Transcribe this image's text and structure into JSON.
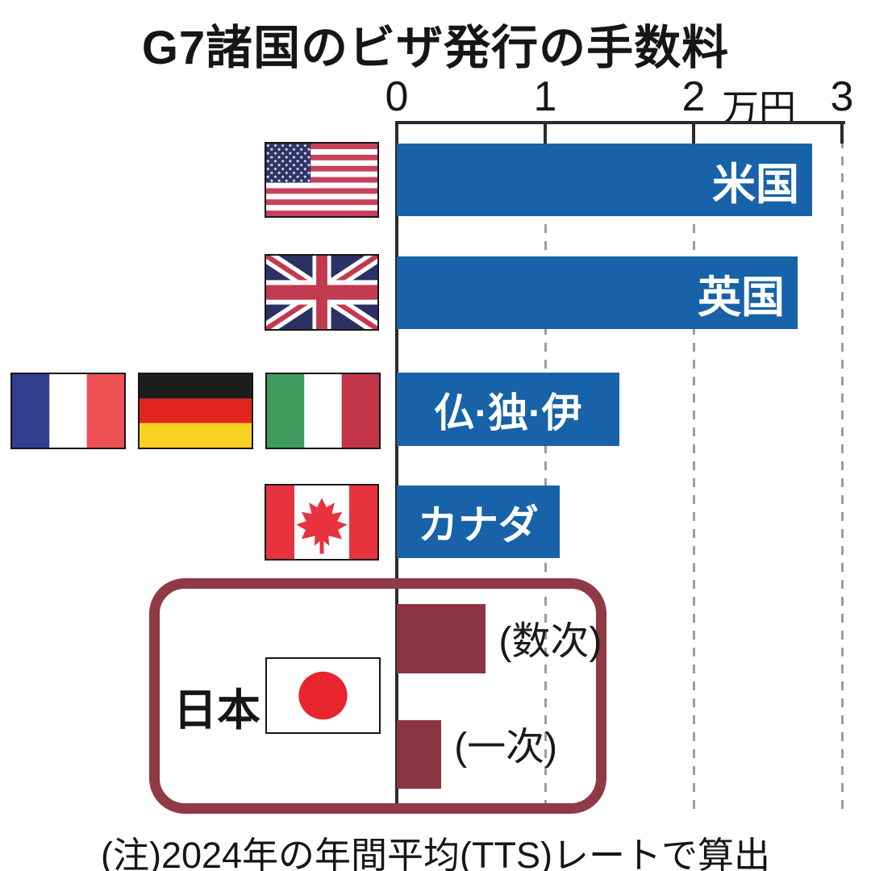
{
  "title": "G7諸国のビザ発行の手数料",
  "note": "(注)2024年の年間平均(TTS)レートで算出",
  "axis": {
    "ticks": [
      "0",
      "1",
      "2",
      "3"
    ],
    "unit": "万円"
  },
  "japan_group": {
    "label": "日本"
  },
  "colors": {
    "bar_blue": "#1762a8",
    "bar_maroon": "#8c3540",
    "japan_box_border": "#8f3a44",
    "gridline": "#9c9c9c",
    "axis": "#2b2b2b",
    "bar_text": "#ffffff"
  },
  "chart_data": {
    "type": "bar",
    "orientation": "horizontal",
    "title": "G7諸国のビザ発行の手数料",
    "x_unit": "万円",
    "xlim": [
      0,
      3
    ],
    "x_ticks": [
      0,
      1,
      2,
      3
    ],
    "grid": "dashed vertical gridlines at 1, 2 and 3",
    "legend": "none",
    "note": "(注)2024年の年間平均(TTS)レートで算出",
    "bars": [
      {
        "label": "米国",
        "flag": "united-states",
        "value": 2.8,
        "color": "#1762a8",
        "label_position": "inside-right"
      },
      {
        "label": "英国",
        "flag": "united-kingdom",
        "value": 2.7,
        "color": "#1762a8",
        "label_position": "inside-right"
      },
      {
        "label": "仏·独·伊",
        "flag": "france-germany-italy",
        "value": 1.5,
        "color": "#1762a8",
        "label_position": "inside-center"
      },
      {
        "label": "カナダ",
        "flag": "canada",
        "value": 1.1,
        "color": "#1762a8",
        "label_position": "inside-center"
      },
      {
        "label": "(数次)",
        "flag": "japan",
        "group": "日本",
        "value": 0.6,
        "color": "#8c3540",
        "label_position": "outside-right"
      },
      {
        "label": "(一次)",
        "flag": "japan",
        "group": "日本",
        "value": 0.3,
        "color": "#8c3540",
        "label_position": "outside-right"
      }
    ]
  }
}
